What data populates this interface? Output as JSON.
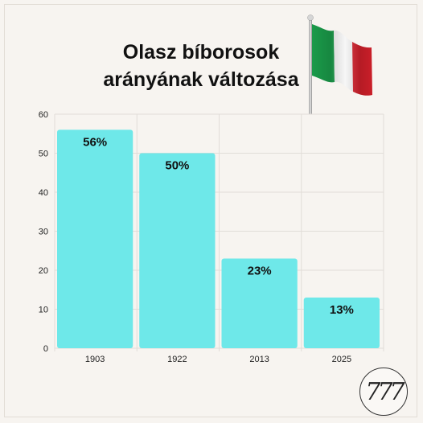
{
  "title_line1": "Olasz bíborosok",
  "title_line2": "arányának változása",
  "logo_text": "777",
  "colors": {
    "bar": "#6ee8e9",
    "grid": "#e1ddd8",
    "background": "#f7f4f0"
  },
  "chart_data": {
    "type": "bar",
    "categories": [
      "1903",
      "1922",
      "2013",
      "2025"
    ],
    "values": [
      56,
      50,
      23,
      13
    ],
    "data_labels": [
      "56%",
      "50%",
      "23%",
      "13%"
    ],
    "ylim": [
      0,
      60
    ],
    "yticks": [
      0,
      10,
      20,
      30,
      40,
      50,
      60
    ],
    "grid": true,
    "title": "Olasz bíborosok arányának változása"
  }
}
